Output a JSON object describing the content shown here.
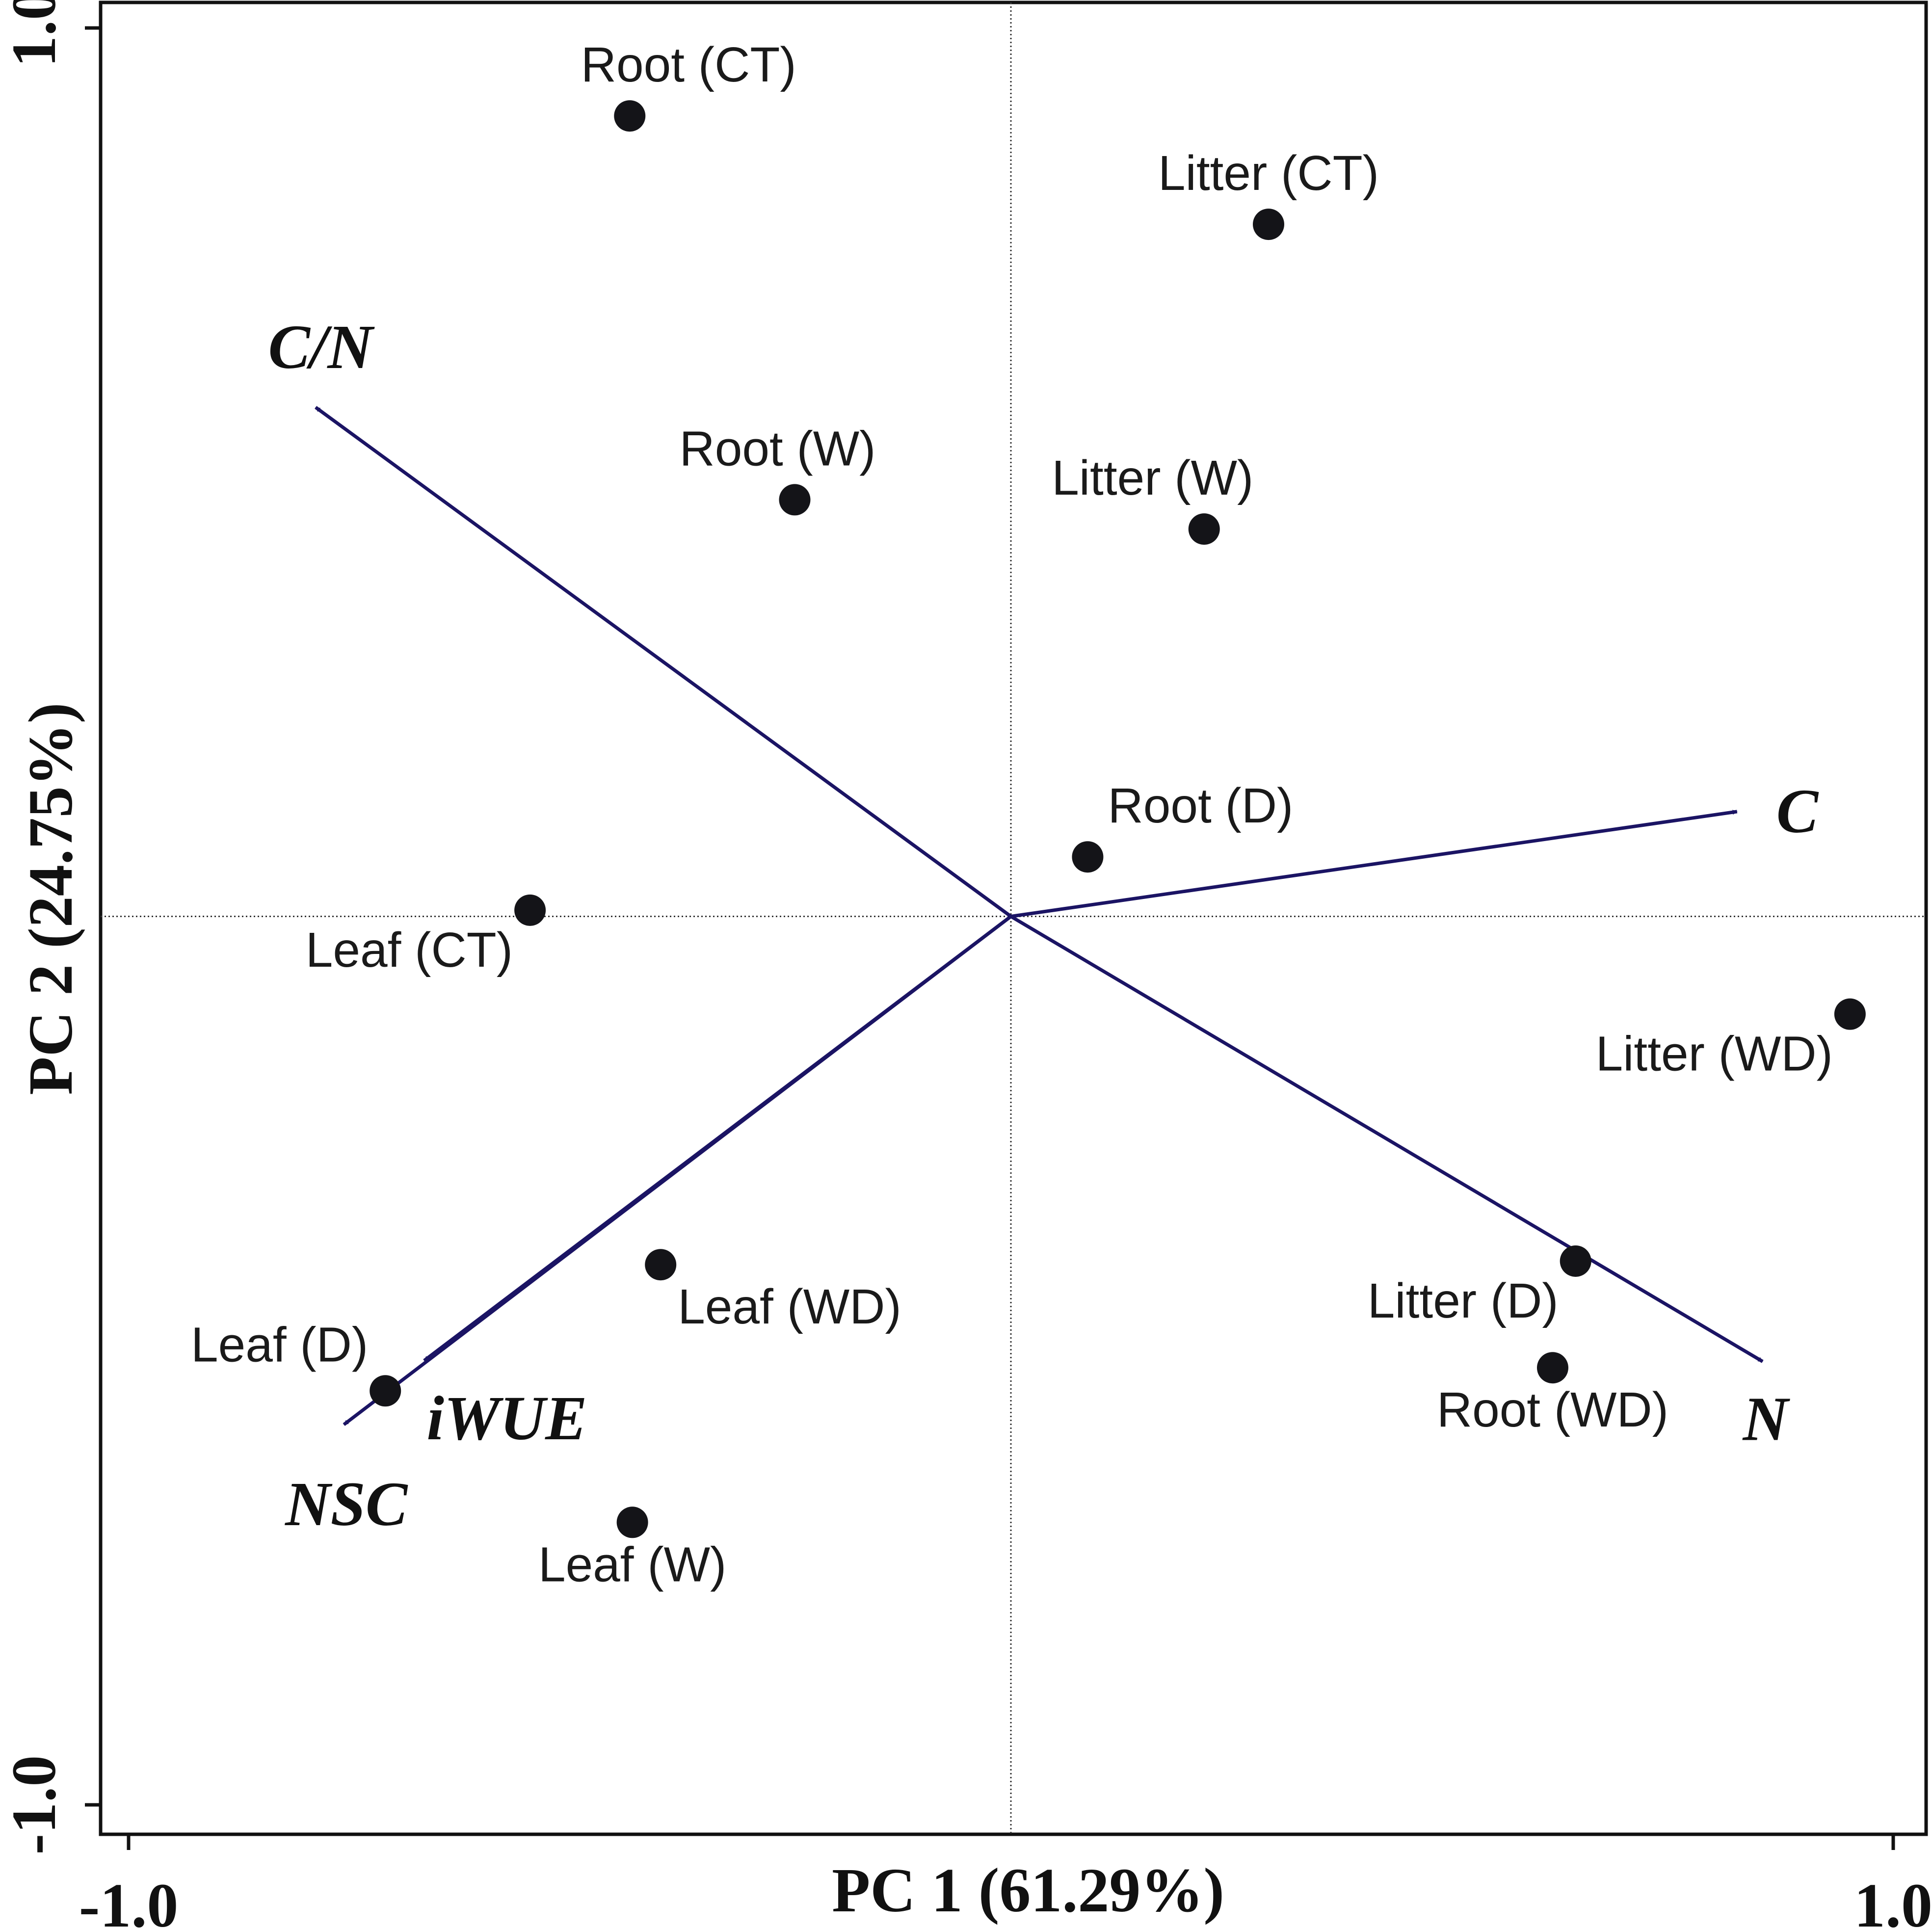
{
  "chart_data": {
    "type": "scatter",
    "subtype": "pca-biplot",
    "xlabel": "PC 1 (61.29%)",
    "ylabel": "PC 2 (24.75%)",
    "xlim": [
      -1.0,
      1.0
    ],
    "ylim": [
      -1.0,
      1.0
    ],
    "x_ticks": [
      {
        "value": -1.0,
        "label": "-1.0"
      },
      {
        "value": 1.0,
        "label": "1.0"
      }
    ],
    "y_ticks": [
      {
        "value": -1.0,
        "label": "-1.0"
      },
      {
        "value": 1.0,
        "label": "1.0"
      }
    ],
    "reference_lines": {
      "x": 0,
      "y": 0,
      "style": "dotted"
    },
    "points": [
      {
        "label": "Root (CT)",
        "x": -0.432,
        "y": 0.901,
        "label_pos": "above"
      },
      {
        "label": "Litter (CT)",
        "x": 0.292,
        "y": 0.779,
        "label_pos": "above"
      },
      {
        "label": "Root (W)",
        "x": -0.245,
        "y": 0.469,
        "label_pos": "above"
      },
      {
        "label": "Litter (W)",
        "x": 0.219,
        "y": 0.436,
        "label_pos": "above"
      },
      {
        "label": "Root (D)",
        "x": 0.087,
        "y": 0.067,
        "label_pos": "above"
      },
      {
        "label": "Leaf (CT)",
        "x": -0.545,
        "y": 0.007,
        "label_pos": "below-left"
      },
      {
        "label": "Litter (WD)",
        "x": 0.951,
        "y": -0.11,
        "label_pos": "below-left"
      },
      {
        "label": "Leaf (WD)",
        "x": -0.397,
        "y": -0.392,
        "label_pos": "below-right"
      },
      {
        "label": "Litter (D)",
        "x": 0.64,
        "y": -0.388,
        "label_pos": "below-left"
      },
      {
        "label": "Leaf (D)",
        "x": -0.709,
        "y": -0.534,
        "label_pos": "above-left"
      },
      {
        "label": "Root (WD)",
        "x": 0.614,
        "y": -0.508,
        "label_pos": "below"
      },
      {
        "label": "Leaf (W)",
        "x": -0.429,
        "y": -0.682,
        "label_pos": "below"
      }
    ],
    "loadings": [
      {
        "name": "C/N",
        "x": -0.788,
        "y": 0.573
      },
      {
        "name": "C",
        "x": 0.823,
        "y": 0.118
      },
      {
        "name": "N",
        "x": 0.852,
        "y": -0.501
      },
      {
        "name": "NSC",
        "x": -0.756,
        "y": -0.572
      },
      {
        "name": "iWUE",
        "x": -0.665,
        "y": -0.5
      }
    ],
    "loading_color": "#1b1464",
    "point_color": "#141418"
  }
}
